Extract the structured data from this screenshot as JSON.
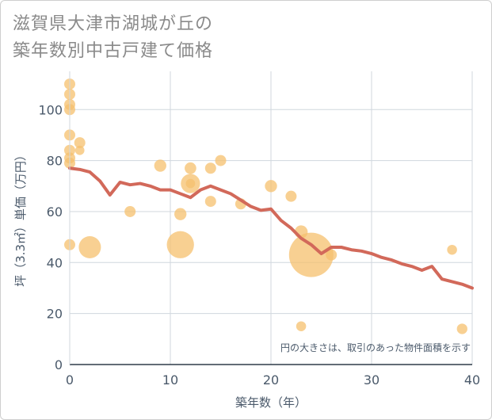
{
  "chart_data": {
    "type": "scatter",
    "title_lines": [
      "滋賀県大津市湖城が丘の",
      "築年数別中古戸建て価格"
    ],
    "xlabel": "築年数（年）",
    "ylabel": "坪（3.3㎡）単価（万円）",
    "xlim": [
      0,
      40
    ],
    "ylim": [
      0,
      115
    ],
    "x_ticks": [
      0,
      10,
      20,
      30,
      40
    ],
    "y_ticks": [
      0,
      20,
      40,
      60,
      80,
      100
    ],
    "note": "円の大きさは、取引のあった物件面積を示す",
    "grid": true,
    "colors": {
      "bubble": "#f5c06e",
      "line": "#d2695a",
      "grid": "#d0d7de",
      "text": "#4b5a6b",
      "title": "#8a8a8a"
    },
    "series": [
      {
        "type": "scatter",
        "points": [
          {
            "x": 0,
            "y": 110,
            "size": 1
          },
          {
            "x": 0,
            "y": 106,
            "size": 1
          },
          {
            "x": 0,
            "y": 102,
            "size": 1
          },
          {
            "x": 0,
            "y": 100,
            "size": 1
          },
          {
            "x": 0,
            "y": 90,
            "size": 1
          },
          {
            "x": 0,
            "y": 84,
            "size": 1
          },
          {
            "x": 0,
            "y": 81,
            "size": 1
          },
          {
            "x": 0,
            "y": 79,
            "size": 1
          },
          {
            "x": 0,
            "y": 47,
            "size": 1
          },
          {
            "x": 1,
            "y": 87,
            "size": 1
          },
          {
            "x": 1,
            "y": 84,
            "size": 0.7
          },
          {
            "x": 2,
            "y": 46,
            "size": 4
          },
          {
            "x": 6,
            "y": 60,
            "size": 1
          },
          {
            "x": 9,
            "y": 78,
            "size": 1.2
          },
          {
            "x": 11,
            "y": 59,
            "size": 1.2
          },
          {
            "x": 11,
            "y": 47,
            "size": 6
          },
          {
            "x": 12,
            "y": 77,
            "size": 1.1
          },
          {
            "x": 12,
            "y": 71,
            "size": 3
          },
          {
            "x": 12,
            "y": 71,
            "size": 0.7
          },
          {
            "x": 14,
            "y": 77,
            "size": 1
          },
          {
            "x": 14,
            "y": 64,
            "size": 1
          },
          {
            "x": 15,
            "y": 80,
            "size": 1
          },
          {
            "x": 17,
            "y": 63,
            "size": 1
          },
          {
            "x": 20,
            "y": 70,
            "size": 1.2
          },
          {
            "x": 22,
            "y": 66,
            "size": 1
          },
          {
            "x": 23,
            "y": 52,
            "size": 1.4
          },
          {
            "x": 23,
            "y": 15,
            "size": 0.8
          },
          {
            "x": 24,
            "y": 43,
            "size": 16
          },
          {
            "x": 26,
            "y": 43,
            "size": 1
          },
          {
            "x": 38,
            "y": 45,
            "size": 0.8
          },
          {
            "x": 39,
            "y": 14,
            "size": 0.9
          }
        ]
      },
      {
        "type": "line",
        "x": [
          0,
          1,
          2,
          3,
          4,
          5,
          6,
          7,
          8,
          9,
          10,
          11,
          12,
          13,
          14,
          15,
          16,
          17,
          18,
          19,
          20,
          21,
          22,
          23,
          24,
          25,
          26,
          27,
          28,
          29,
          30,
          31,
          32,
          33,
          34,
          35,
          36,
          37,
          38,
          39,
          40
        ],
        "y": [
          77,
          76.5,
          75.5,
          72,
          66.5,
          71.5,
          70.5,
          71,
          70,
          68.5,
          68.5,
          67,
          65.5,
          68.5,
          70,
          68.5,
          67,
          64.5,
          62,
          60.5,
          61,
          56.5,
          53.5,
          49.5,
          47,
          43.5,
          46,
          46,
          45,
          44.5,
          43.5,
          42,
          41,
          39.5,
          38.5,
          37,
          38.5,
          33.5,
          32.5,
          31.5,
          30
        ]
      }
    ]
  }
}
